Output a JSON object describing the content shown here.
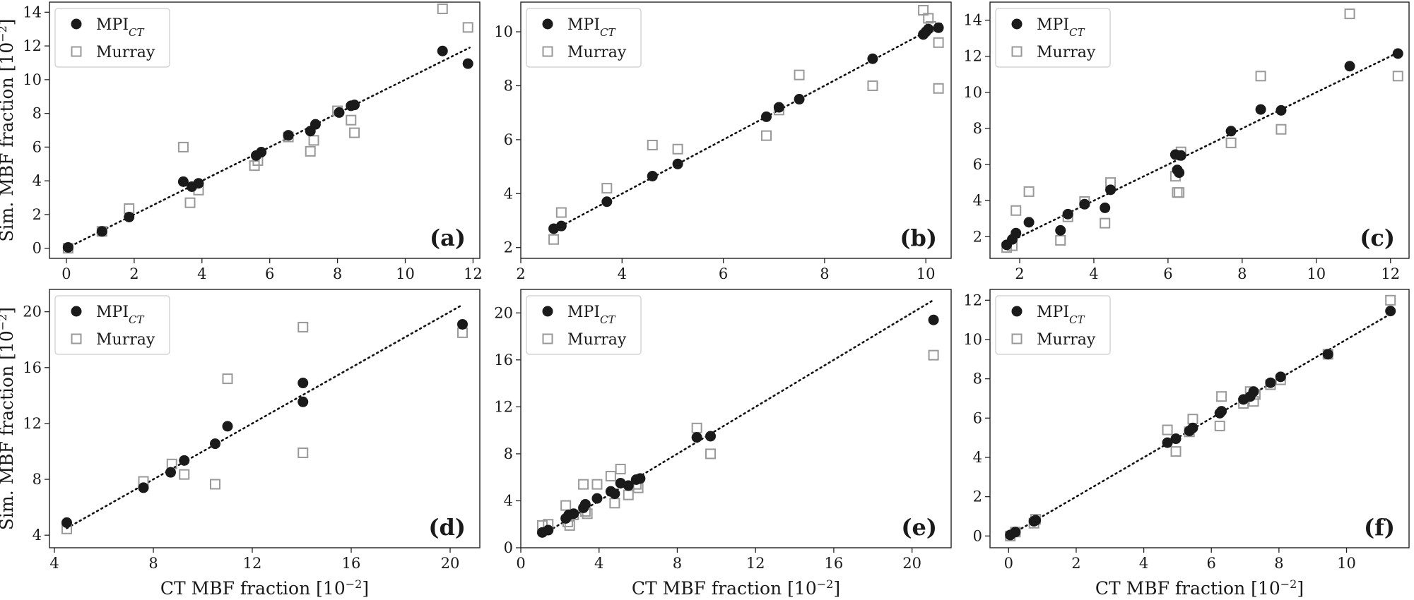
{
  "chart_data": [
    {
      "panel": "(a)",
      "type": "scatter",
      "xlabel": "",
      "ylabel": "Sim. MBF fraction [10⁻²]",
      "xlim": [
        -0.5,
        12.2
      ],
      "ylim": [
        -0.6,
        14.6
      ],
      "xticks": [
        0,
        2,
        4,
        6,
        8,
        10,
        12
      ],
      "yticks": [
        0,
        2,
        4,
        6,
        8,
        10,
        12,
        14
      ],
      "fit_line": [
        [
          0,
          0
        ],
        [
          11.9,
          11.9
        ]
      ],
      "legend": [
        "MPI_CT",
        "Murray"
      ],
      "series": [
        {
          "name": "MPI_CT",
          "marker": "filled-circle",
          "color": "#1a1a1a",
          "x": [
            0.05,
            1.05,
            1.85,
            3.45,
            3.7,
            3.9,
            5.6,
            5.75,
            6.55,
            7.2,
            7.35,
            8.05,
            8.4,
            8.5,
            11.1,
            11.85
          ],
          "y": [
            0.05,
            1.0,
            1.85,
            3.95,
            3.65,
            3.85,
            5.5,
            5.7,
            6.7,
            6.95,
            7.35,
            8.05,
            8.45,
            8.5,
            11.7,
            10.95
          ]
        },
        {
          "name": "Murray",
          "marker": "open-square",
          "color": "#999999",
          "x": [
            0.05,
            1.05,
            1.85,
            3.45,
            3.65,
            3.9,
            5.55,
            5.65,
            6.55,
            7.2,
            7.3,
            8.0,
            8.4,
            8.5,
            11.1,
            11.85
          ],
          "y": [
            0.0,
            1.0,
            2.35,
            6.0,
            2.7,
            3.45,
            4.9,
            5.2,
            6.6,
            5.75,
            6.4,
            8.15,
            7.6,
            6.85,
            14.2,
            13.1
          ]
        }
      ]
    },
    {
      "panel": "(b)",
      "type": "scatter",
      "xlabel": "",
      "ylabel": "",
      "xlim": [
        2.0,
        10.5
      ],
      "ylim": [
        1.6,
        11.1
      ],
      "xticks": [
        2,
        4,
        6,
        8,
        10
      ],
      "yticks": [
        2,
        4,
        6,
        8,
        10
      ],
      "fit_line": [
        [
          2.7,
          2.7
        ],
        [
          10.3,
          10.3
        ]
      ],
      "legend": [
        "MPI_CT",
        "Murray"
      ],
      "series": [
        {
          "name": "MPI_CT",
          "marker": "filled-circle",
          "color": "#1a1a1a",
          "x": [
            2.65,
            2.8,
            3.7,
            4.6,
            5.1,
            6.85,
            7.1,
            7.5,
            8.95,
            9.95,
            10.0,
            10.05,
            10.25
          ],
          "y": [
            2.7,
            2.8,
            3.7,
            4.65,
            5.1,
            6.85,
            7.2,
            7.5,
            9.0,
            9.9,
            10.0,
            10.1,
            10.15
          ]
        },
        {
          "name": "Murray",
          "marker": "open-square",
          "color": "#999999",
          "x": [
            2.65,
            2.8,
            3.7,
            4.6,
            5.1,
            6.85,
            7.1,
            7.5,
            8.95,
            9.95,
            10.05,
            10.1,
            10.25,
            10.25
          ],
          "y": [
            2.3,
            3.3,
            4.2,
            5.8,
            5.65,
            6.15,
            7.1,
            8.4,
            8.0,
            10.8,
            10.5,
            10.2,
            9.6,
            7.9
          ]
        }
      ]
    },
    {
      "panel": "(c)",
      "type": "scatter",
      "xlabel": "",
      "ylabel": "",
      "xlim": [
        1.2,
        12.5
      ],
      "ylim": [
        0.8,
        15.0
      ],
      "xticks": [
        2,
        4,
        6,
        8,
        10,
        12
      ],
      "yticks": [
        2,
        4,
        6,
        8,
        10,
        12,
        14
      ],
      "fit_line": [
        [
          1.6,
          1.6
        ],
        [
          12.2,
          12.2
        ]
      ],
      "legend": [
        "MPI_CT",
        "Murray"
      ],
      "series": [
        {
          "name": "MPI_CT",
          "marker": "filled-circle",
          "color": "#1a1a1a",
          "x": [
            1.65,
            1.8,
            1.9,
            2.25,
            3.1,
            3.3,
            3.75,
            4.3,
            4.45,
            6.2,
            6.25,
            6.3,
            6.35,
            7.7,
            8.5,
            9.05,
            10.9,
            12.2
          ],
          "y": [
            1.55,
            1.85,
            2.2,
            2.8,
            2.35,
            3.25,
            3.8,
            3.6,
            4.6,
            6.55,
            5.7,
            5.55,
            6.5,
            7.85,
            9.05,
            9.0,
            11.45,
            12.15
          ]
        },
        {
          "name": "Murray",
          "marker": "open-square",
          "color": "#999999",
          "x": [
            1.65,
            1.8,
            1.9,
            2.25,
            3.1,
            3.3,
            3.75,
            4.3,
            4.45,
            6.2,
            6.25,
            6.3,
            6.35,
            7.7,
            8.5,
            9.05,
            10.9,
            12.2
          ],
          "y": [
            1.4,
            1.5,
            3.45,
            4.5,
            1.8,
            3.1,
            3.95,
            2.75,
            5.0,
            5.35,
            4.45,
            4.45,
            6.7,
            7.2,
            10.9,
            7.95,
            14.35,
            10.9
          ]
        }
      ]
    },
    {
      "panel": "(d)",
      "type": "scatter",
      "xlabel": "CT MBF fraction [10⁻²]",
      "ylabel": "Sim. MBF fraction [10⁻²]",
      "xlim": [
        3.8,
        21.2
      ],
      "ylim": [
        3.1,
        21.6
      ],
      "xticks": [
        4,
        8,
        12,
        16,
        20
      ],
      "yticks": [
        4,
        8,
        12,
        16,
        20
      ],
      "fit_line": [
        [
          4.5,
          4.5
        ],
        [
          20.5,
          20.5
        ]
      ],
      "legend": [
        "MPI_CT",
        "Murray"
      ],
      "series": [
        {
          "name": "MPI_CT",
          "marker": "filled-circle",
          "color": "#1a1a1a",
          "x": [
            4.5,
            7.6,
            8.7,
            9.25,
            10.5,
            11.0,
            14.05,
            14.05,
            20.5
          ],
          "y": [
            4.9,
            7.4,
            8.5,
            9.35,
            10.55,
            11.8,
            13.55,
            14.9,
            19.1
          ]
        },
        {
          "name": "Murray",
          "marker": "open-square",
          "color": "#999999",
          "x": [
            4.5,
            7.6,
            8.75,
            9.25,
            10.5,
            11.0,
            14.05,
            14.05,
            20.5
          ],
          "y": [
            4.45,
            7.85,
            9.1,
            8.35,
            7.65,
            15.2,
            18.9,
            9.9,
            18.5
          ]
        }
      ]
    },
    {
      "panel": "(e)",
      "type": "scatter",
      "xlabel": "CT MBF fraction [10⁻²]",
      "ylabel": "",
      "xlim": [
        0.0,
        22.0
      ],
      "ylim": [
        0.0,
        22.0
      ],
      "xticks": [
        0,
        4,
        8,
        12,
        16,
        20
      ],
      "yticks": [
        0,
        4,
        8,
        12,
        16,
        20
      ],
      "fit_line": [
        [
          1.0,
          1.0
        ],
        [
          21.1,
          21.1
        ]
      ],
      "legend": [
        "MPI_CT",
        "Murray"
      ],
      "series": [
        {
          "name": "MPI_CT",
          "marker": "filled-circle",
          "color": "#1a1a1a",
          "x": [
            1.1,
            1.4,
            2.3,
            2.45,
            2.7,
            3.2,
            3.3,
            3.9,
            4.6,
            4.8,
            5.1,
            5.5,
            5.9,
            6.1,
            9.0,
            9.7,
            21.1
          ],
          "y": [
            1.3,
            1.5,
            2.5,
            2.8,
            2.9,
            3.4,
            3.7,
            4.2,
            4.8,
            4.6,
            5.5,
            5.3,
            5.8,
            5.9,
            9.4,
            9.5,
            19.4
          ]
        },
        {
          "name": "Murray",
          "marker": "open-square",
          "color": "#999999",
          "x": [
            1.1,
            1.4,
            2.3,
            2.4,
            2.5,
            2.7,
            3.2,
            3.3,
            3.4,
            3.9,
            4.6,
            4.8,
            5.1,
            5.5,
            5.9,
            6.0,
            9.0,
            9.7,
            21.1
          ],
          "y": [
            1.9,
            2.0,
            3.6,
            2.2,
            1.9,
            2.8,
            5.4,
            3.1,
            2.9,
            5.4,
            6.1,
            3.8,
            6.7,
            4.5,
            5.4,
            5.1,
            10.2,
            8.0,
            16.4
          ]
        }
      ]
    },
    {
      "panel": "(f)",
      "type": "scatter",
      "xlabel": "CT MBF fraction [10⁻²]",
      "ylabel": "",
      "xlim": [
        -0.55,
        11.85
      ],
      "ylim": [
        -0.6,
        12.55
      ],
      "xticks": [
        0,
        2,
        4,
        6,
        8,
        10
      ],
      "yticks": [
        0,
        2,
        4,
        6,
        8,
        10,
        12
      ],
      "fit_line": [
        [
          0,
          0
        ],
        [
          11.3,
          11.3
        ]
      ],
      "legend": [
        "MPI_CT",
        "Murray"
      ],
      "series": [
        {
          "name": "MPI_CT",
          "marker": "filled-circle",
          "color": "#1a1a1a",
          "x": [
            0.05,
            0.2,
            0.75,
            0.8,
            4.7,
            4.95,
            5.35,
            5.45,
            6.25,
            6.3,
            6.95,
            7.15,
            7.25,
            7.75,
            8.05,
            9.45,
            11.3
          ],
          "y": [
            0.05,
            0.2,
            0.75,
            0.8,
            4.75,
            4.95,
            5.35,
            5.5,
            6.25,
            6.35,
            6.95,
            7.1,
            7.35,
            7.8,
            8.1,
            9.25,
            11.45
          ]
        },
        {
          "name": "Murray",
          "marker": "open-square",
          "color": "#999999",
          "x": [
            0.05,
            0.2,
            0.75,
            0.8,
            4.7,
            4.95,
            5.35,
            5.45,
            6.25,
            6.3,
            6.95,
            7.15,
            7.25,
            7.3,
            7.75,
            8.05,
            9.45,
            11.3
          ],
          "y": [
            0.0,
            0.2,
            0.65,
            0.85,
            5.4,
            4.3,
            5.3,
            5.95,
            5.6,
            7.1,
            6.75,
            7.35,
            6.85,
            7.2,
            7.7,
            7.95,
            9.25,
            12.0
          ]
        }
      ]
    }
  ]
}
